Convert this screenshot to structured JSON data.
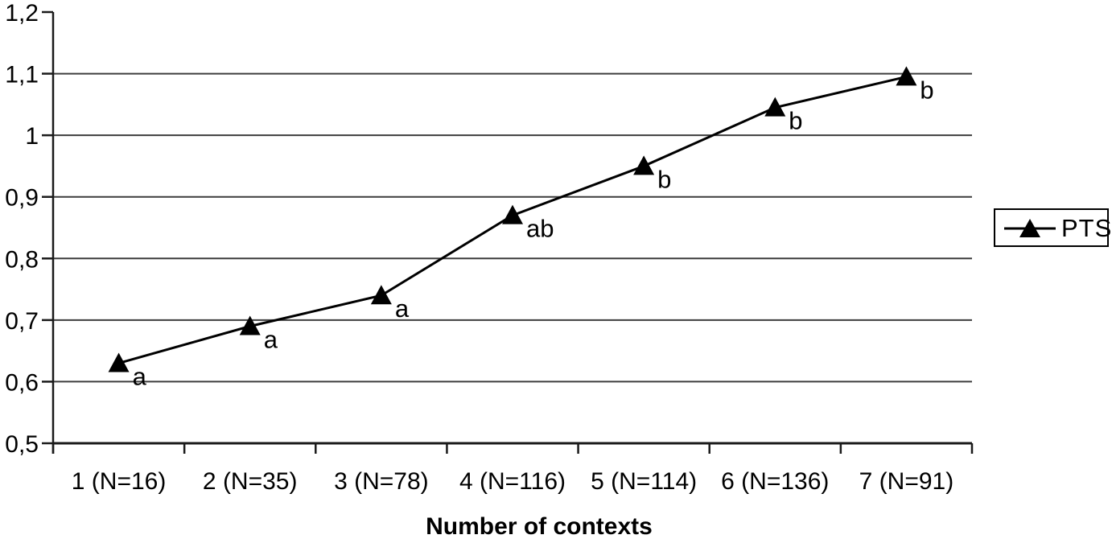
{
  "chart_data": {
    "type": "line",
    "title": "",
    "xlabel": "Number of contexts",
    "ylabel": "",
    "categories": [
      "1 (N=16)",
      "2 (N=35)",
      "3 (N=78)",
      "4 (N=116)",
      "5 (N=114)",
      "6 (N=136)",
      "7 (N=91)"
    ],
    "series": [
      {
        "name": "PTS",
        "values": [
          0.63,
          0.69,
          0.74,
          0.87,
          0.95,
          1.045,
          1.095
        ],
        "marker": "filled-triangle-up",
        "color": "#000000"
      }
    ],
    "point_annotations": [
      "a",
      "a",
      "a",
      "ab",
      "b",
      "b",
      "b"
    ],
    "ylim": [
      0.5,
      1.2
    ],
    "ytick_step": 0.1,
    "ytick_labels": [
      "0,5",
      "0,6",
      "0,7",
      "0,8",
      "0,9",
      "1",
      "1,1",
      "1,2"
    ],
    "decimal_separator": ",",
    "grid": "horizontal",
    "legend_position": "right",
    "legend_border": true,
    "colors": {
      "line": "#000000",
      "grid": "#3d3d3d",
      "axis": "#1a1a1a",
      "text": "#000000",
      "background": "#ffffff"
    }
  }
}
